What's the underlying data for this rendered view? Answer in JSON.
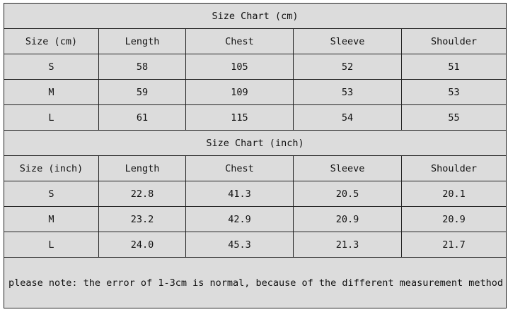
{
  "cm": {
    "title": "Size Chart (cm)",
    "headers": [
      "Size (cm)",
      "Length",
      "Chest",
      "Sleeve",
      "Shoulder"
    ],
    "rows": [
      [
        "S",
        "58",
        "105",
        "52",
        "51"
      ],
      [
        "M",
        "59",
        "109",
        "53",
        "53"
      ],
      [
        "L",
        "61",
        "115",
        "54",
        "55"
      ]
    ]
  },
  "inch": {
    "title": "Size Chart (inch)",
    "headers": [
      "Size (inch)",
      "Length",
      "Chest",
      "Sleeve",
      "Shoulder"
    ],
    "rows": [
      [
        "S",
        "22.8",
        "41.3",
        "20.5",
        "20.1"
      ],
      [
        "M",
        "23.2",
        "42.9",
        "20.9",
        "20.9"
      ],
      [
        "L",
        "24.0",
        "45.3",
        "21.3",
        "21.7"
      ]
    ]
  },
  "note": "please note: the error of 1-3cm is normal, because of the different measurement method"
}
